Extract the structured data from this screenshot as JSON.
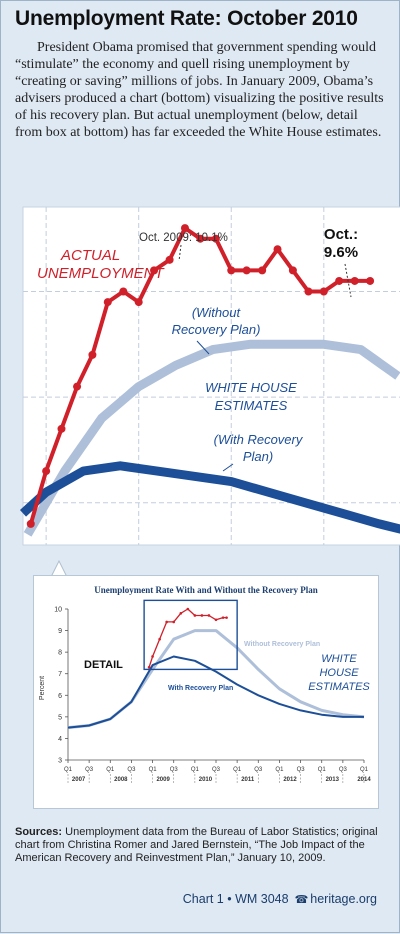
{
  "header": {
    "title": "Unemployment Rate: October 2010"
  },
  "intro": {
    "text": "President Obama promised that government spending would “stimulate” the economy and quell rising unemployment by “creating or saving” millions of jobs. In January 2009, Obama’s advisers produced a chart (bottom) visualizing the positive results of his recovery plan. But actual unemployment (below, detail from box at bottom) has far exceeded the White House estimates."
  },
  "main_chart": {
    "actual_label_line1": "ACTUAL",
    "actual_label_line2": "UNEMPLOYMENT",
    "peak_annotation": "Oct. 2009: 10.1%",
    "last_annotation_line1": "Oct.:",
    "last_annotation_line2": "9.6%",
    "without_label_line1": "(Without",
    "without_label_line2": "Recovery Plan)",
    "estimates_label_line1": "WHITE HOUSE",
    "estimates_label_line2": "ESTIMATES",
    "with_label_line1": "(With Recovery",
    "with_label_line2": "Plan)"
  },
  "inset_chart": {
    "title": "Unemployment Rate With and Without the Recovery Plan",
    "ylabel": "Percent",
    "detail_label": "DETAIL",
    "without_label": "Without Recovery Plan",
    "with_label": "With Recovery Plan",
    "estimates_label_line1": "WHITE",
    "estimates_label_line2": "HOUSE",
    "estimates_label_line3": "ESTIMATES"
  },
  "chart_data": [
    {
      "type": "line",
      "title": "",
      "xlabel": "",
      "ylabel": "",
      "x_range": [
        2008.875,
        2010.917
      ],
      "ylim": [
        7.1,
        10.3
      ],
      "series": [
        {
          "name": "ACTUAL UNEMPLOYMENT",
          "color": "#d0202a",
          "x": [
            2008.917,
            2009.0,
            2009.083,
            2009.167,
            2009.25,
            2009.333,
            2009.417,
            2009.5,
            2009.583,
            2009.667,
            2009.75,
            2009.833,
            2009.917,
            2010.0,
            2010.083,
            2010.167,
            2010.25,
            2010.333,
            2010.417,
            2010.5,
            2010.583,
            2010.667,
            2010.75
          ],
          "values": [
            7.3,
            7.8,
            8.2,
            8.6,
            8.9,
            9.4,
            9.5,
            9.4,
            9.7,
            9.8,
            10.1,
            10.0,
            10.0,
            9.7,
            9.7,
            9.7,
            9.9,
            9.7,
            9.5,
            9.5,
            9.6,
            9.6,
            9.6
          ]
        },
        {
          "name": "(Without Recovery Plan)",
          "color": "#aebfd9",
          "x": [
            2008.9,
            2009.1,
            2009.3,
            2009.5,
            2009.7,
            2009.9,
            2010.1,
            2010.3,
            2010.5,
            2010.7,
            2010.9
          ],
          "values": [
            7.2,
            7.8,
            8.3,
            8.6,
            8.8,
            8.95,
            9.0,
            9.0,
            9.0,
            8.95,
            8.7
          ]
        },
        {
          "name": "(With Recovery Plan)",
          "color": "#1d4f98",
          "x": [
            2008.875,
            2009.0,
            2009.2,
            2009.4,
            2009.6,
            2009.8,
            2010.0,
            2010.2,
            2010.4,
            2010.6,
            2010.8,
            2010.917
          ],
          "values": [
            7.4,
            7.6,
            7.8,
            7.85,
            7.8,
            7.75,
            7.7,
            7.6,
            7.5,
            7.4,
            7.3,
            7.25
          ]
        }
      ]
    },
    {
      "type": "line",
      "title": "Unemployment Rate With and Without the Recovery Plan",
      "xlabel": "",
      "ylabel": "Percent",
      "ylim": [
        3,
        10
      ],
      "yticks": [
        3,
        4,
        5,
        6,
        7,
        8,
        9,
        10
      ],
      "x_range": [
        2007.0,
        2014.0
      ],
      "xtick_quarters": [
        "Q1",
        "Q3",
        "Q1",
        "Q3",
        "Q1",
        "Q3",
        "Q1",
        "Q3",
        "Q1",
        "Q3",
        "Q1",
        "Q3",
        "Q1",
        "Q3",
        "Q1"
      ],
      "xtick_years": [
        "2007",
        "2008",
        "2009",
        "2010",
        "2011",
        "2012",
        "2013",
        "2014"
      ],
      "series": [
        {
          "name": "Actual",
          "color": "#d0202a",
          "x": [
            2008.917,
            2009.0,
            2009.167,
            2009.333,
            2009.5,
            2009.667,
            2009.833,
            2010.0,
            2010.167,
            2010.333,
            2010.5,
            2010.667,
            2010.75
          ],
          "values": [
            7.3,
            7.8,
            8.6,
            9.4,
            9.4,
            9.8,
            10.0,
            9.7,
            9.7,
            9.7,
            9.5,
            9.6,
            9.6
          ]
        },
        {
          "name": "Without Recovery Plan",
          "color": "#aebfd9",
          "x": [
            2007.0,
            2007.5,
            2008.0,
            2008.5,
            2009.0,
            2009.5,
            2010.0,
            2010.5,
            2011.0,
            2011.5,
            2012.0,
            2012.5,
            2013.0,
            2013.5,
            2014.0
          ],
          "values": [
            4.5,
            4.6,
            4.9,
            5.7,
            7.2,
            8.6,
            9.0,
            9.0,
            8.2,
            7.2,
            6.3,
            5.7,
            5.3,
            5.1,
            5.0
          ]
        },
        {
          "name": "With Recovery Plan",
          "color": "#1d4f98",
          "x": [
            2007.0,
            2007.5,
            2008.0,
            2008.5,
            2009.0,
            2009.5,
            2010.0,
            2010.5,
            2011.0,
            2011.5,
            2012.0,
            2012.5,
            2013.0,
            2013.5,
            2014.0
          ],
          "values": [
            4.5,
            4.6,
            4.9,
            5.7,
            7.4,
            7.8,
            7.6,
            7.1,
            6.5,
            6.0,
            5.6,
            5.3,
            5.1,
            5.0,
            5.0
          ]
        }
      ]
    }
  ],
  "sources": {
    "label": "Sources:",
    "text": " Unemployment data from the Bureau of Labor Statistics; original chart from Christina Romer and Jared Bernstein, “The Job Impact of the American Recovery and Reinvestment Plan,” January 10, 2009."
  },
  "credit": {
    "chart": "Chart 1 • WM 3048",
    "site": "heritage.org"
  },
  "colors": {
    "actual": "#d0202a",
    "without": "#aebfd9",
    "with": "#1d4f98",
    "background": "#dfe9f3"
  }
}
